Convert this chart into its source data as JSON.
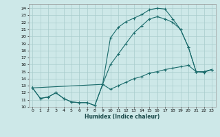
{
  "xlabel": "Humidex (Indice chaleur)",
  "background_color": "#cde8e8",
  "grid_color": "#a8cccc",
  "line_color": "#1a6b6b",
  "xlim": [
    -0.5,
    23.5
  ],
  "ylim": [
    10,
    24.6
  ],
  "yticks": [
    10,
    11,
    12,
    13,
    14,
    15,
    16,
    17,
    18,
    19,
    20,
    21,
    22,
    23,
    24
  ],
  "xticks": [
    0,
    1,
    2,
    3,
    4,
    5,
    6,
    7,
    8,
    9,
    10,
    11,
    12,
    13,
    14,
    15,
    16,
    17,
    18,
    19,
    20,
    21,
    22,
    23
  ],
  "line1_x": [
    0,
    1,
    2,
    3,
    4,
    5,
    6,
    7,
    8,
    9,
    10,
    11,
    12,
    13,
    14,
    15,
    16,
    17,
    18,
    19,
    20,
    21,
    22,
    23
  ],
  "line1_y": [
    12.7,
    11.2,
    11.4,
    12.0,
    11.2,
    10.7,
    10.6,
    10.6,
    10.2,
    13.2,
    19.8,
    21.3,
    22.1,
    22.6,
    23.1,
    23.8,
    24.0,
    23.9,
    22.5,
    21.0,
    18.5,
    15.0,
    15.0,
    15.3
  ],
  "line2_x": [
    0,
    1,
    2,
    3,
    4,
    5,
    6,
    7,
    8,
    9,
    10,
    11,
    12,
    13,
    14,
    15,
    16,
    17,
    18,
    19,
    20,
    21,
    22,
    23
  ],
  "line2_y": [
    12.7,
    11.2,
    11.4,
    12.0,
    11.2,
    10.7,
    10.6,
    10.6,
    10.2,
    13.2,
    12.5,
    13.0,
    13.5,
    14.0,
    14.3,
    14.8,
    15.0,
    15.3,
    15.5,
    15.7,
    15.9,
    15.0,
    14.9,
    15.3
  ],
  "line3_x": [
    0,
    9,
    10,
    11,
    12,
    13,
    14,
    15,
    16,
    17,
    18,
    19,
    20,
    21,
    22,
    23
  ],
  "line3_y": [
    12.7,
    13.2,
    16.0,
    17.5,
    19.0,
    20.5,
    21.5,
    22.5,
    22.8,
    22.5,
    22.0,
    21.0,
    18.5,
    15.0,
    15.0,
    15.3
  ]
}
